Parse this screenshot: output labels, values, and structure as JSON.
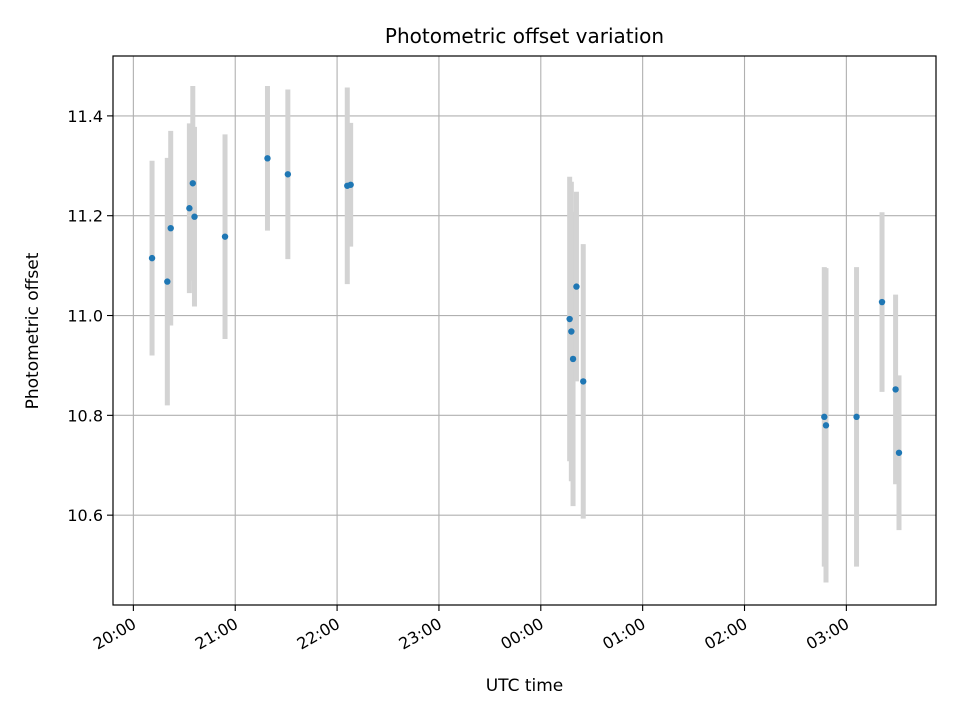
{
  "chart_data": {
    "type": "scatter",
    "title": "Photometric offset variation",
    "xlabel": "UTC time",
    "ylabel": "Photometric offset",
    "x_unit": "UTC time of day (hours past 20:00)",
    "xlim_hours": [
      -0.2,
      7.88
    ],
    "ylim": [
      10.42,
      11.52
    ],
    "grid": true,
    "x_ticks": [
      {
        "label": "20:00",
        "hours": 0
      },
      {
        "label": "21:00",
        "hours": 1
      },
      {
        "label": "22:00",
        "hours": 2
      },
      {
        "label": "23:00",
        "hours": 3
      },
      {
        "label": "00:00",
        "hours": 4
      },
      {
        "label": "01:00",
        "hours": 5
      },
      {
        "label": "02:00",
        "hours": 6
      },
      {
        "label": "03:00",
        "hours": 7
      }
    ],
    "y_ticks": [
      10.6,
      10.8,
      11.0,
      11.2,
      11.4
    ],
    "series": [
      {
        "marker_color": "#1f77b4",
        "errorbar_color": "#d3d3d3",
        "points": [
          {
            "t": "20:11",
            "y": 11.115,
            "err": 0.195
          },
          {
            "t": "20:20",
            "y": 11.068,
            "err": 0.248
          },
          {
            "t": "20:22",
            "y": 11.175,
            "err": 0.195
          },
          {
            "t": "20:33",
            "y": 11.215,
            "err": 0.17
          },
          {
            "t": "20:35",
            "y": 11.265,
            "err": 0.195
          },
          {
            "t": "20:36",
            "y": 11.198,
            "err": 0.18
          },
          {
            "t": "20:54",
            "y": 11.158,
            "err": 0.205
          },
          {
            "t": "21:19",
            "y": 11.315,
            "err": 0.145
          },
          {
            "t": "21:31",
            "y": 11.283,
            "err": 0.17
          },
          {
            "t": "22:06",
            "y": 11.26,
            "err": 0.197
          },
          {
            "t": "22:08",
            "y": 11.262,
            "err": 0.124
          },
          {
            "t": "00:17",
            "y": 10.993,
            "err": 0.285
          },
          {
            "t": "00:18",
            "y": 10.968,
            "err": 0.3
          },
          {
            "t": "00:19",
            "y": 10.913,
            "err": 0.295
          },
          {
            "t": "00:21",
            "y": 11.058,
            "err": 0.19
          },
          {
            "t": "00:25",
            "y": 10.868,
            "err": 0.275
          },
          {
            "t": "02:47",
            "y": 10.797,
            "err": 0.3
          },
          {
            "t": "02:48",
            "y": 10.78,
            "err": 0.315
          },
          {
            "t": "03:06",
            "y": 10.797,
            "err": 0.3
          },
          {
            "t": "03:21",
            "y": 11.027,
            "err": 0.18
          },
          {
            "t": "03:29",
            "y": 10.852,
            "err": 0.19
          },
          {
            "t": "03:31",
            "y": 10.725,
            "err": 0.155
          }
        ]
      }
    ]
  }
}
